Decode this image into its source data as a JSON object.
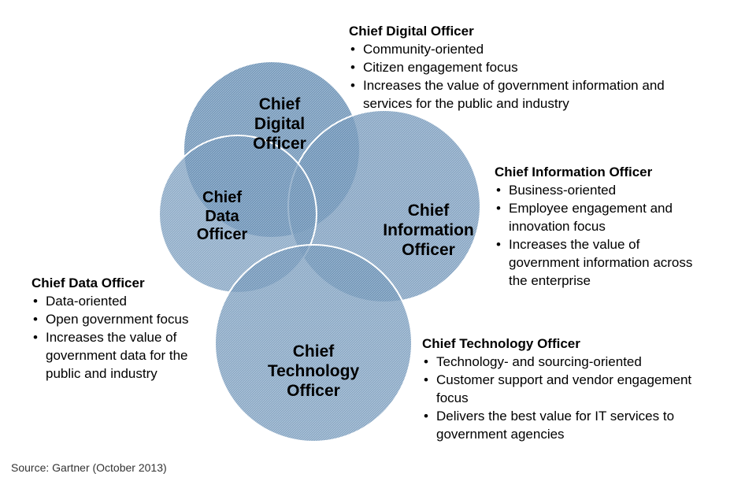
{
  "circles": {
    "digital": [
      "Chief",
      "Digital",
      "Officer"
    ],
    "information": [
      "Chief",
      "Information",
      "Officer"
    ],
    "data": [
      "Chief",
      "Data",
      "Officer"
    ],
    "technology": [
      "Chief",
      "Technology",
      "Officer"
    ]
  },
  "descriptions": {
    "digital": {
      "title": "Chief Digital Officer",
      "items": [
        "Community-oriented",
        "Citizen engagement focus",
        "Increases the value of government information and services for the public and industry"
      ]
    },
    "information": {
      "title": "Chief Information Officer",
      "items": [
        "Business-oriented",
        "Employee engagement and innovation focus",
        "Increases the value of government information across the enterprise"
      ]
    },
    "data": {
      "title": "Chief Data Officer",
      "items": [
        "Data-oriented",
        "Open government focus",
        "Increases the value of government data for the public and industry"
      ]
    },
    "technology": {
      "title": "Chief Technology Officer",
      "items": [
        "Technology- and sourcing-oriented",
        "Customer support and vendor engagement focus",
        "Delivers the best value for IT services to government agencies"
      ]
    }
  },
  "source": "Source: Gartner (October 2013)",
  "colors": {
    "fill": "#5f86ad",
    "fill_light": "#8fb0cd",
    "stroke": "#ffffff"
  }
}
